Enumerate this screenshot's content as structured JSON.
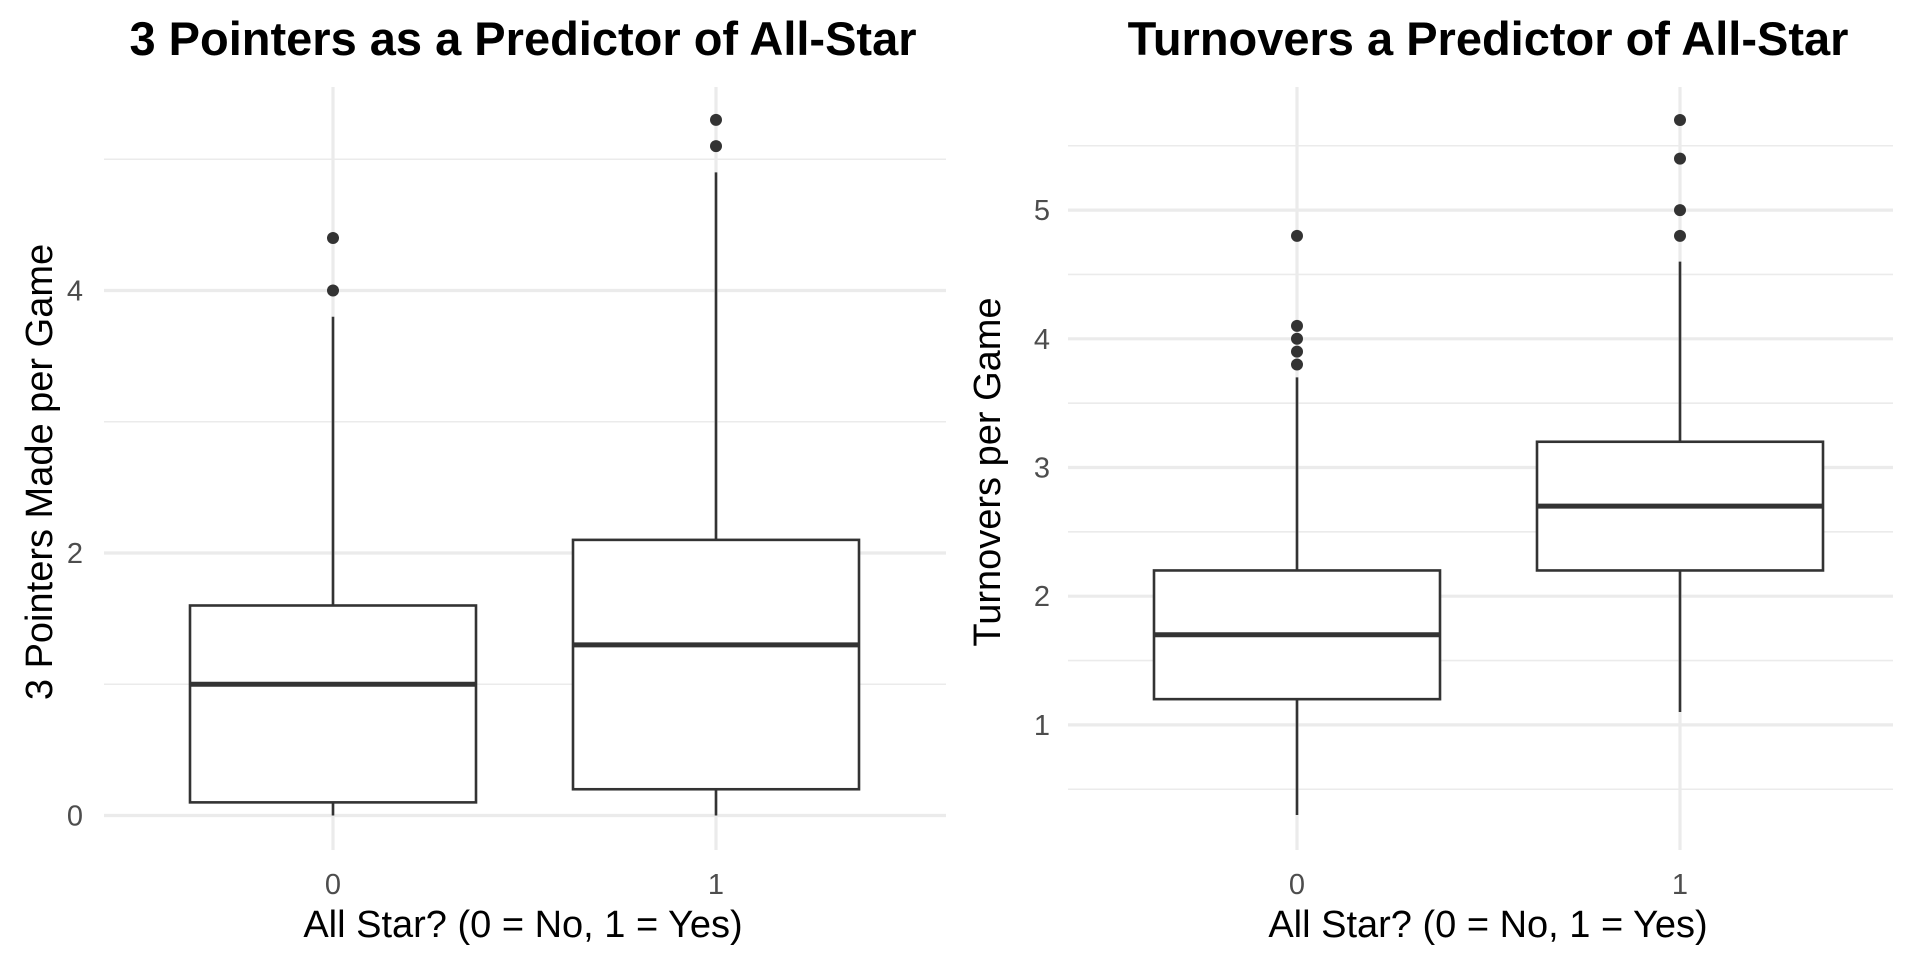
{
  "chart_data": [
    {
      "type": "boxplot",
      "title": "3 Pointers as a Predictor of All-Star",
      "xlabel": "All Star? (0 = No, 1 = Yes)",
      "ylabel": "3 Pointers Made per Game",
      "categories": [
        "0",
        "1"
      ],
      "yticks": [
        0,
        2,
        4
      ],
      "ylim": [
        0,
        5.3
      ],
      "grid": true,
      "boxes": [
        {
          "category": "0",
          "lower_whisker": 0.0,
          "q1": 0.1,
          "median": 1.0,
          "q3": 1.6,
          "upper_whisker": 3.8,
          "outliers": [
            4.0,
            4.4
          ]
        },
        {
          "category": "1",
          "lower_whisker": 0.0,
          "q1": 0.2,
          "median": 1.3,
          "q3": 2.1,
          "upper_whisker": 4.9,
          "outliers": [
            5.1,
            5.3
          ]
        }
      ]
    },
    {
      "type": "boxplot",
      "title": "Turnovers a Predictor of All-Star",
      "xlabel": "All Star? (0 = No, 1 = Yes)",
      "ylabel": "Turnovers per Game",
      "categories": [
        "0",
        "1"
      ],
      "yticks": [
        1,
        2,
        3,
        4,
        5
      ],
      "ylim": [
        0.3,
        5.7
      ],
      "grid": true,
      "boxes": [
        {
          "category": "0",
          "lower_whisker": 0.3,
          "q1": 1.2,
          "median": 1.7,
          "q3": 2.2,
          "upper_whisker": 3.7,
          "outliers": [
            3.8,
            3.9,
            4.0,
            4.1,
            4.8
          ]
        },
        {
          "category": "1",
          "lower_whisker": 1.1,
          "q1": 2.2,
          "median": 2.7,
          "q3": 3.2,
          "upper_whisker": 4.6,
          "outliers": [
            4.8,
            5.0,
            5.4,
            5.7
          ]
        }
      ]
    }
  ]
}
